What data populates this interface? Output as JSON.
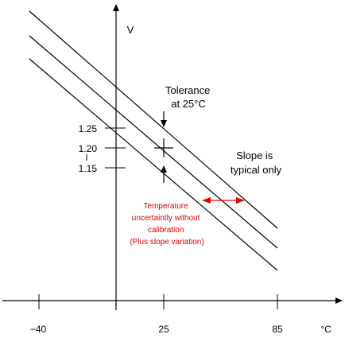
{
  "axes": {
    "y_unit": "V",
    "x_unit": "°C",
    "x_ticks": [
      "−40",
      "25",
      "85"
    ],
    "y_ticks": [
      "1.25",
      "1.20",
      "1.15"
    ]
  },
  "annotations": {
    "tolerance": [
      "Tolerance",
      "at 25°C"
    ],
    "slope": [
      "Slope is",
      "typical only"
    ],
    "temperature": [
      "Temperature",
      "uncertaintly without",
      "calibration",
      "(Plus slope variation)"
    ]
  },
  "colors": {
    "ink": "#000000",
    "accent": "#e00000"
  }
}
